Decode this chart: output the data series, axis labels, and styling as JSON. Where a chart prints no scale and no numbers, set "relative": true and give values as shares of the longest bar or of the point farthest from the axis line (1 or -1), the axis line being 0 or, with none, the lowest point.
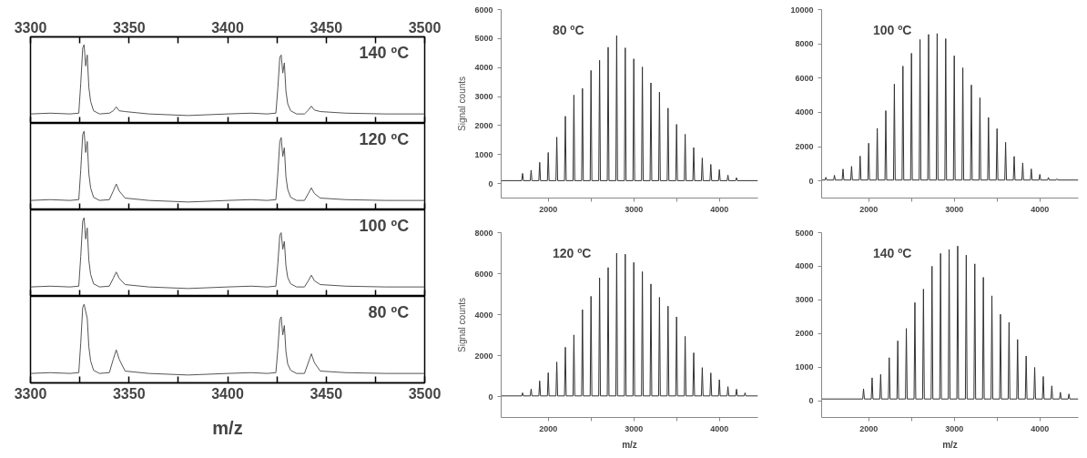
{
  "chart_data": [
    {
      "type": "line",
      "relative": true,
      "annotations": [
        "140 ºC"
      ],
      "color": "#555555",
      "xlim": [
        3300,
        3500
      ],
      "xticks": [
        3300,
        {
          "value": 3325,
          "label": null
        },
        3350,
        {
          "value": 3375,
          "label": null
        },
        3400,
        {
          "value": 3425,
          "label": null
        },
        3450,
        {
          "value": 3475,
          "label": null
        },
        3500
      ],
      "x": [
        3300,
        3310,
        3320,
        3324.5,
        3325.5,
        3326.5,
        3327.2,
        3328,
        3328.8,
        3329.6,
        3330.5,
        3332,
        3335,
        3340,
        3342,
        3343.5,
        3345,
        3348,
        3360,
        3380,
        3400,
        3412,
        3420,
        3424.5,
        3425.5,
        3426.5,
        3427.2,
        3428,
        3428.8,
        3429.6,
        3430.5,
        3432,
        3435,
        3439,
        3441,
        3442.5,
        3444,
        3447,
        3460,
        3480,
        3500
      ],
      "values": [
        0.12,
        0.13,
        0.12,
        0.13,
        0.51,
        0.96,
        1,
        0.73,
        0.87,
        0.46,
        0.28,
        0.16,
        0.12,
        0.13,
        0.16,
        0.21,
        0.16,
        0.15,
        0.12,
        0.1,
        0.12,
        0.13,
        0.12,
        0.13,
        0.45,
        0.84,
        0.87,
        0.64,
        0.77,
        0.41,
        0.25,
        0.16,
        0.12,
        0.12,
        0.17,
        0.22,
        0.17,
        0.15,
        0.13,
        0.12,
        0.12
      ]
    },
    {
      "type": "line",
      "relative": true,
      "annotations": [
        "120 ºC"
      ],
      "color": "#555555",
      "tick_labels": false,
      "xlim": [
        3300,
        3500
      ],
      "xticks": [
        3300,
        {
          "value": 3325,
          "label": null
        },
        3350,
        {
          "value": 3375,
          "label": null
        },
        3400,
        {
          "value": 3425,
          "label": null
        },
        3450,
        {
          "value": 3475,
          "label": null
        },
        3500
      ],
      "x": [
        3300,
        3310,
        3320,
        3324.5,
        3325.5,
        3326.5,
        3327.2,
        3328,
        3328.8,
        3329.6,
        3330.5,
        3332,
        3335,
        3340,
        3342,
        3343.5,
        3345,
        3348,
        3360,
        3380,
        3400,
        3412,
        3420,
        3424.5,
        3425.5,
        3426.5,
        3427.2,
        3428,
        3428.8,
        3429.6,
        3430.5,
        3432,
        3435,
        3439,
        3441,
        3442.5,
        3444,
        3447,
        3460,
        3480,
        3500
      ],
      "values": [
        0.12,
        0.13,
        0.12,
        0.13,
        0.51,
        0.96,
        1,
        0.73,
        0.87,
        0.46,
        0.28,
        0.16,
        0.12,
        0.13,
        0.24,
        0.33,
        0.24,
        0.15,
        0.12,
        0.1,
        0.12,
        0.13,
        0.12,
        0.13,
        0.47,
        0.87,
        0.92,
        0.68,
        0.79,
        0.42,
        0.26,
        0.16,
        0.12,
        0.12,
        0.21,
        0.28,
        0.21,
        0.15,
        0.13,
        0.12,
        0.12
      ]
    },
    {
      "type": "line",
      "relative": true,
      "annotations": [
        "100 ºC"
      ],
      "color": "#555555",
      "tick_labels": false,
      "xlim": [
        3300,
        3500
      ],
      "xticks": [
        3300,
        {
          "value": 3325,
          "label": null
        },
        3350,
        {
          "value": 3375,
          "label": null
        },
        3400,
        {
          "value": 3425,
          "label": null
        },
        3450,
        {
          "value": 3475,
          "label": null
        },
        3500
      ],
      "x": [
        3300,
        3310,
        3320,
        3324.5,
        3325.5,
        3326.5,
        3327.2,
        3328,
        3328.8,
        3329.6,
        3330.5,
        3332,
        3335,
        3340,
        3342,
        3343.5,
        3345,
        3348,
        3360,
        3380,
        3400,
        3412,
        3420,
        3424.5,
        3425.5,
        3426.5,
        3427.2,
        3428,
        3428.8,
        3429.6,
        3430.5,
        3432,
        3435,
        3439,
        3441,
        3442.5,
        3444,
        3447,
        3460,
        3480,
        3500
      ],
      "values": [
        0.12,
        0.13,
        0.12,
        0.13,
        0.51,
        0.96,
        1,
        0.73,
        0.87,
        0.46,
        0.28,
        0.16,
        0.12,
        0.13,
        0.23,
        0.31,
        0.23,
        0.15,
        0.12,
        0.1,
        0.12,
        0.13,
        0.12,
        0.13,
        0.42,
        0.78,
        0.81,
        0.6,
        0.7,
        0.39,
        0.24,
        0.16,
        0.12,
        0.12,
        0.2,
        0.27,
        0.2,
        0.15,
        0.13,
        0.12,
        0.12
      ]
    },
    {
      "type": "line",
      "relative": true,
      "annotations": [
        "80 ºC"
      ],
      "color": "#555555",
      "xlabel": "m/z",
      "xlim": [
        3300,
        3500
      ],
      "xticks": [
        3300,
        {
          "value": 3325,
          "label": null
        },
        3350,
        {
          "value": 3375,
          "label": null
        },
        3400,
        {
          "value": 3425,
          "label": null
        },
        3450,
        {
          "value": 3475,
          "label": null
        },
        3500
      ],
      "x": [
        3300,
        3310,
        3320,
        3324.5,
        3325.5,
        3326.5,
        3327.2,
        3328,
        3328.8,
        3329.6,
        3330.5,
        3332,
        3335,
        3340,
        3342,
        3343.5,
        3345,
        3348,
        3360,
        3380,
        3400,
        3412,
        3420,
        3424.5,
        3425.5,
        3426.5,
        3427.2,
        3428,
        3428.8,
        3429.6,
        3430.5,
        3432,
        3435,
        3439,
        3441,
        3442.5,
        3444,
        3447,
        3460,
        3480,
        3500
      ],
      "values": [
        0.12,
        0.13,
        0.12,
        0.13,
        0.51,
        0.96,
        1,
        0.91,
        0.82,
        0.46,
        0.28,
        0.16,
        0.12,
        0.13,
        0.3,
        0.42,
        0.3,
        0.15,
        0.12,
        0.1,
        0.12,
        0.13,
        0.12,
        0.13,
        0.43,
        0.8,
        0.84,
        0.61,
        0.73,
        0.4,
        0.24,
        0.16,
        0.12,
        0.12,
        0.26,
        0.37,
        0.26,
        0.15,
        0.13,
        0.12,
        0.12
      ]
    },
    {
      "type": "line",
      "annotations": [
        "80 ºC"
      ],
      "ylabel": "Signal counts",
      "color": "#333333",
      "xlim": [
        1450,
        4450
      ],
      "xticks": [
        2000,
        {
          "value": 2500,
          "label": null
        },
        3000,
        {
          "value": 3500,
          "label": null
        },
        4000
      ],
      "ylim": [
        -500,
        6000
      ],
      "yticks": [
        0,
        1000,
        2000,
        3000,
        4000,
        5000,
        6000
      ],
      "x": [
        1450,
        1690,
        1700,
        1710,
        1790,
        1800,
        1810,
        1890,
        1900,
        1910,
        1990,
        2000,
        2010,
        2090,
        2100,
        2110,
        2190,
        2200,
        2210,
        2290,
        2300,
        2310,
        2390,
        2400,
        2410,
        2490,
        2500,
        2510,
        2590,
        2600,
        2610,
        2690,
        2700,
        2710,
        2790,
        2800,
        2810,
        2890,
        2900,
        2910,
        2990,
        3000,
        3010,
        3090,
        3100,
        3110,
        3190,
        3200,
        3210,
        3290,
        3300,
        3310,
        3390,
        3400,
        3410,
        3490,
        3500,
        3510,
        3590,
        3600,
        3610,
        3690,
        3700,
        3710,
        3790,
        3800,
        3810,
        3890,
        3900,
        3910,
        3990,
        4000,
        4010,
        4090,
        4100,
        4110,
        4190,
        4200,
        4210,
        4450
      ],
      "values": [
        100,
        100,
        350,
        100,
        100,
        460,
        100,
        100,
        730,
        100,
        100,
        1070,
        100,
        100,
        1600,
        100,
        100,
        2320,
        100,
        100,
        3050,
        100,
        100,
        3280,
        100,
        100,
        3900,
        100,
        100,
        4250,
        100,
        100,
        4700,
        100,
        100,
        5100,
        100,
        100,
        4680,
        100,
        100,
        4300,
        100,
        100,
        4020,
        100,
        100,
        3470,
        100,
        100,
        3150,
        100,
        100,
        2600,
        100,
        100,
        2040,
        100,
        100,
        1700,
        100,
        100,
        1240,
        100,
        100,
        880,
        100,
        100,
        660,
        100,
        100,
        480,
        100,
        100,
        290,
        100,
        100,
        200,
        100,
        100
      ]
    },
    {
      "type": "line",
      "annotations": [
        "100 ºC"
      ],
      "color": "#333333",
      "xlim": [
        1450,
        4450
      ],
      "xticks": [
        2000,
        {
          "value": 2500,
          "label": null
        },
        3000,
        {
          "value": 3500,
          "label": null
        },
        4000
      ],
      "ylim": [
        -1000,
        10000
      ],
      "yticks": [
        0,
        2000,
        4000,
        6000,
        8000,
        10000
      ],
      "x": [
        1450,
        1490,
        1500,
        1510,
        1590,
        1600,
        1610,
        1690,
        1700,
        1710,
        1790,
        1800,
        1810,
        1890,
        1900,
        1910,
        1990,
        2000,
        2010,
        2090,
        2100,
        2110,
        2190,
        2200,
        2210,
        2290,
        2300,
        2310,
        2390,
        2400,
        2410,
        2490,
        2500,
        2510,
        2590,
        2600,
        2610,
        2690,
        2700,
        2710,
        2790,
        2800,
        2810,
        2890,
        2900,
        2910,
        2990,
        3000,
        3010,
        3090,
        3100,
        3110,
        3190,
        3200,
        3210,
        3290,
        3300,
        3310,
        3390,
        3400,
        3410,
        3490,
        3500,
        3510,
        3590,
        3600,
        3610,
        3690,
        3700,
        3710,
        3790,
        3800,
        3810,
        3890,
        3900,
        3910,
        3990,
        4000,
        4010,
        4090,
        4100,
        4110,
        4190,
        4200,
        4210,
        4450
      ],
      "values": [
        50,
        50,
        210,
        50,
        50,
        330,
        50,
        50,
        690,
        50,
        50,
        850,
        50,
        50,
        1450,
        50,
        50,
        2200,
        50,
        50,
        3070,
        50,
        50,
        4100,
        50,
        50,
        5650,
        50,
        50,
        6700,
        50,
        50,
        7450,
        50,
        50,
        8250,
        50,
        50,
        8550,
        50,
        50,
        8600,
        50,
        50,
        8300,
        50,
        50,
        7300,
        50,
        50,
        6600,
        50,
        50,
        5600,
        50,
        50,
        4850,
        50,
        50,
        3700,
        50,
        50,
        3050,
        50,
        50,
        2250,
        50,
        50,
        1430,
        50,
        50,
        1050,
        50,
        50,
        700,
        50,
        50,
        380,
        50,
        50,
        200,
        50,
        50,
        120,
        50,
        50
      ]
    },
    {
      "type": "line",
      "annotations": [
        "120 ºC"
      ],
      "xlabel": "m/z",
      "ylabel": "Signal counts",
      "color": "#333333",
      "xlim": [
        1450,
        4450
      ],
      "xticks": [
        2000,
        {
          "value": 2500,
          "label": null
        },
        3000,
        {
          "value": 3500,
          "label": null
        },
        4000
      ],
      "ylim": [
        -1000,
        8000
      ],
      "yticks": [
        0,
        2000,
        4000,
        6000,
        8000
      ],
      "x": [
        1450,
        1690,
        1700,
        1710,
        1790,
        1800,
        1810,
        1890,
        1900,
        1910,
        1990,
        2000,
        2010,
        2090,
        2100,
        2110,
        2190,
        2200,
        2210,
        2290,
        2300,
        2310,
        2390,
        2400,
        2410,
        2490,
        2500,
        2510,
        2590,
        2600,
        2610,
        2690,
        2700,
        2710,
        2790,
        2800,
        2810,
        2890,
        2900,
        2910,
        2990,
        3000,
        3010,
        3090,
        3100,
        3110,
        3190,
        3200,
        3210,
        3290,
        3300,
        3310,
        3390,
        3400,
        3410,
        3490,
        3500,
        3510,
        3590,
        3600,
        3610,
        3690,
        3700,
        3710,
        3790,
        3800,
        3810,
        3890,
        3900,
        3910,
        3990,
        4000,
        4010,
        4090,
        4100,
        4110,
        4190,
        4200,
        4210,
        4290,
        4300,
        4310,
        4450
      ],
      "values": [
        50,
        50,
        200,
        50,
        50,
        380,
        50,
        50,
        780,
        50,
        50,
        1180,
        50,
        50,
        1700,
        50,
        50,
        2420,
        50,
        50,
        3020,
        50,
        50,
        4250,
        50,
        50,
        4900,
        50,
        50,
        5800,
        50,
        50,
        6300,
        50,
        50,
        7000,
        50,
        50,
        6950,
        50,
        50,
        6550,
        50,
        50,
        6100,
        50,
        50,
        5500,
        50,
        50,
        4850,
        50,
        50,
        4420,
        50,
        50,
        3900,
        50,
        50,
        2950,
        50,
        50,
        2150,
        50,
        50,
        1430,
        50,
        50,
        1170,
        50,
        50,
        840,
        50,
        50,
        500,
        50,
        50,
        380,
        50,
        50,
        200,
        50,
        50
      ]
    },
    {
      "type": "line",
      "annotations": [
        "140 ºC"
      ],
      "xlabel": "m/z",
      "color": "#333333",
      "xlim": [
        1450,
        4450
      ],
      "xticks": [
        2000,
        {
          "value": 2500,
          "label": null
        },
        3000,
        {
          "value": 3500,
          "label": null
        },
        4000
      ],
      "ylim": [
        -500,
        5000
      ],
      "yticks": [
        0,
        1000,
        2000,
        3000,
        4000,
        5000
      ],
      "x": [
        1450,
        1930,
        1940,
        1950,
        2030,
        2040,
        2050,
        2130,
        2140,
        2150,
        2230,
        2240,
        2250,
        2330,
        2340,
        2350,
        2430,
        2440,
        2450,
        2530,
        2540,
        2550,
        2630,
        2640,
        2650,
        2730,
        2740,
        2750,
        2830,
        2840,
        2850,
        2930,
        2940,
        2950,
        3030,
        3040,
        3050,
        3130,
        3140,
        3150,
        3230,
        3240,
        3250,
        3330,
        3340,
        3350,
        3430,
        3440,
        3450,
        3530,
        3540,
        3550,
        3630,
        3640,
        3650,
        3730,
        3740,
        3750,
        3830,
        3840,
        3850,
        3930,
        3940,
        3950,
        4030,
        4040,
        4050,
        4130,
        4140,
        4150,
        4230,
        4240,
        4250,
        4330,
        4340,
        4350,
        4450
      ],
      "values": [
        50,
        50,
        350,
        50,
        50,
        680,
        50,
        50,
        780,
        50,
        50,
        1280,
        50,
        50,
        1780,
        50,
        50,
        2150,
        50,
        50,
        2920,
        50,
        50,
        3320,
        50,
        50,
        4000,
        50,
        50,
        4380,
        50,
        50,
        4500,
        50,
        50,
        4600,
        50,
        50,
        4330,
        50,
        50,
        4070,
        50,
        50,
        3670,
        50,
        50,
        3120,
        50,
        50,
        2570,
        50,
        50,
        2330,
        50,
        50,
        1820,
        50,
        50,
        1330,
        50,
        50,
        990,
        50,
        50,
        720,
        50,
        50,
        440,
        50,
        50,
        250,
        50,
        50,
        200,
        50,
        50
      ]
    }
  ]
}
